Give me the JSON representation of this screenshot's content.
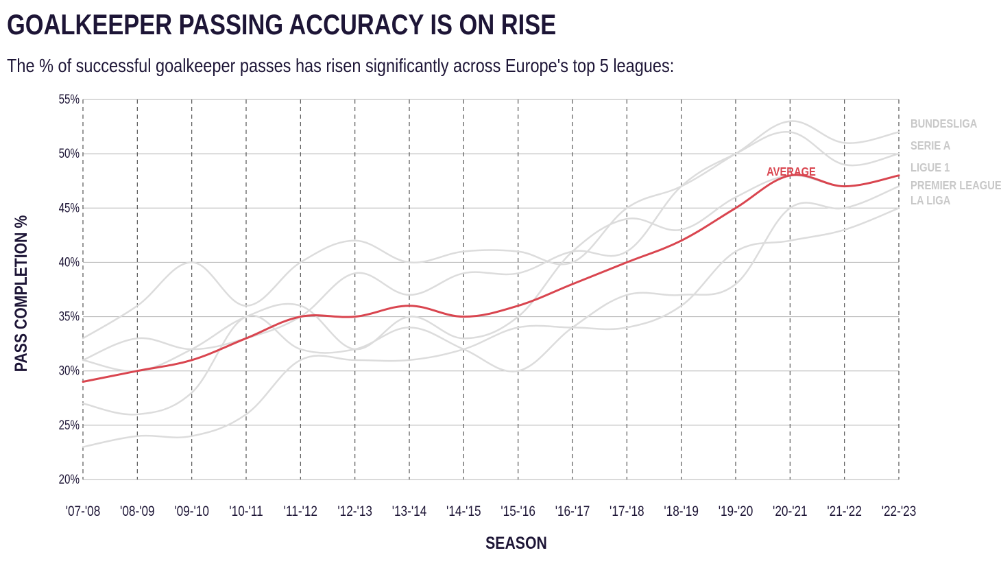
{
  "header": {
    "title": "GOALKEEPER PASSING ACCURACY IS ON RISE",
    "subtitle": "The % of successful goalkeeper passes has risen significantly across Europe's top 5 leagues:"
  },
  "colors": {
    "average": "#d9454f",
    "league": "#dcdcdc",
    "league_label": "#c8c8c8",
    "text": "#1d1536",
    "grid": "#b5b5b5"
  },
  "chart_data": {
    "type": "line",
    "title": "GOALKEEPER PASSING ACCURACY IS ON RISE",
    "xlabel": "SEASON",
    "ylabel": "PASS COMPLETION %",
    "ylim": [
      20,
      55
    ],
    "yticks": [
      20,
      25,
      30,
      35,
      40,
      45,
      50,
      55
    ],
    "ytick_labels": [
      "20%",
      "25%",
      "30%",
      "35%",
      "40%",
      "45%",
      "50%",
      "55%"
    ],
    "categories": [
      "'07-'08",
      "'08-'09",
      "'09-'10",
      "'10-'11",
      "'11-'12",
      "'12-'13",
      "'13-'14",
      "'14-'15",
      "'15-'16",
      "'16-'17",
      "'17-'18",
      "'18-'19",
      "'19-'20",
      "'20-'21",
      "'21-'22",
      "'22-'23"
    ],
    "series": [
      {
        "name": "BUNDESLIGA",
        "values": [
          33,
          36,
          40,
          36,
          40,
          42,
          40,
          41,
          41,
          40,
          45,
          47,
          50,
          53,
          51,
          52
        ]
      },
      {
        "name": "SERIE A",
        "values": [
          31,
          33,
          32,
          33,
          35,
          39,
          37,
          39,
          39,
          41,
          41,
          47,
          50,
          52,
          49,
          50
        ]
      },
      {
        "name": "LIGUE 1",
        "values": [
          31,
          30,
          32,
          35,
          36,
          32,
          35,
          33,
          35,
          41,
          44,
          43,
          46,
          48,
          47,
          48
        ]
      },
      {
        "name": "PREMIER LEAGUE",
        "values": [
          27,
          26,
          28,
          35,
          32,
          32,
          34,
          32,
          30,
          34,
          37,
          37,
          38,
          45,
          45,
          47
        ]
      },
      {
        "name": "LA LIGA",
        "values": [
          23,
          24,
          24,
          26,
          31,
          31,
          31,
          32,
          34,
          34,
          34,
          36,
          41,
          42,
          43,
          45
        ]
      },
      {
        "name": "AVERAGE",
        "values": [
          29,
          30,
          31,
          33,
          35,
          35,
          36,
          35,
          36,
          38,
          40,
          42,
          45,
          48,
          47,
          48
        ],
        "highlight": true
      }
    ],
    "legend": [
      "BUNDESLIGA",
      "SERIE A",
      "LIGUE 1",
      "PREMIER LEAGUE",
      "LA LIGA"
    ],
    "average_label": "AVERAGE",
    "grid": true
  }
}
